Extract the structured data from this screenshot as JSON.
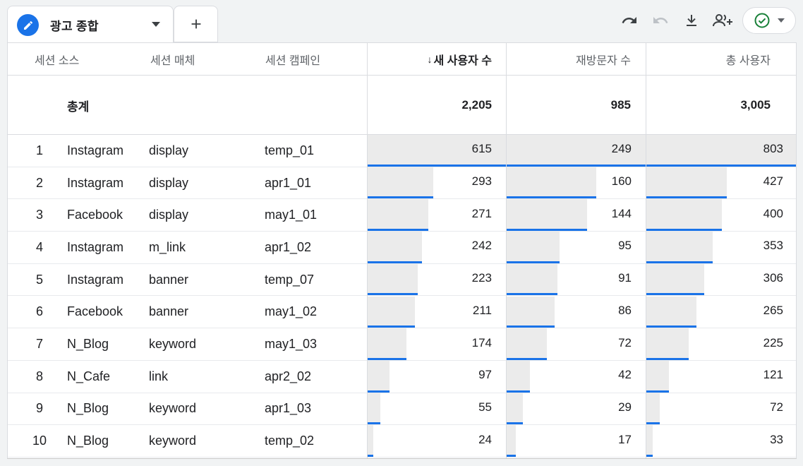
{
  "tab": {
    "label": "광고 종합"
  },
  "toolbar": {
    "icons": [
      "undo-icon",
      "redo-icon",
      "download-icon",
      "share-user-icon",
      "check-circle-icon"
    ]
  },
  "colors": {
    "accent": "#1a73e8",
    "bar_bg": "#ebebeb",
    "status_green": "#188038"
  },
  "table": {
    "headers": {
      "source": "세션 소스",
      "medium": "세션 매체",
      "campaign": "세션 캠페인",
      "new_users": "새 사용자 수",
      "returning": "재방문자 수",
      "total_users": "총 사용자"
    },
    "sort_arrow": "↓",
    "totals": {
      "label": "총계",
      "new_users": "2,205",
      "returning": "985",
      "total_users": "3,005"
    },
    "rows": [
      {
        "idx": "1",
        "source": "Instagram",
        "medium": "display",
        "campaign": "temp_01",
        "new_users": 615,
        "returning": 249,
        "total_users": 803
      },
      {
        "idx": "2",
        "source": "Instagram",
        "medium": "display",
        "campaign": "apr1_01",
        "new_users": 293,
        "returning": 160,
        "total_users": 427
      },
      {
        "idx": "3",
        "source": "Facebook",
        "medium": "display",
        "campaign": "may1_01",
        "new_users": 271,
        "returning": 144,
        "total_users": 400
      },
      {
        "idx": "4",
        "source": "Instagram",
        "medium": "m_link",
        "campaign": "apr1_02",
        "new_users": 242,
        "returning": 95,
        "total_users": 353
      },
      {
        "idx": "5",
        "source": "Instagram",
        "medium": "banner",
        "campaign": "temp_07",
        "new_users": 223,
        "returning": 91,
        "total_users": 306
      },
      {
        "idx": "6",
        "source": "Facebook",
        "medium": "banner",
        "campaign": "may1_02",
        "new_users": 211,
        "returning": 86,
        "total_users": 265
      },
      {
        "idx": "7",
        "source": "N_Blog",
        "medium": "keyword",
        "campaign": "may1_03",
        "new_users": 174,
        "returning": 72,
        "total_users": 225
      },
      {
        "idx": "8",
        "source": "N_Cafe",
        "medium": "link",
        "campaign": "apr2_02",
        "new_users": 97,
        "returning": 42,
        "total_users": 121
      },
      {
        "idx": "9",
        "source": "N_Blog",
        "medium": "keyword",
        "campaign": "apr1_03",
        "new_users": 55,
        "returning": 29,
        "total_users": 72
      },
      {
        "idx": "10",
        "source": "N_Blog",
        "medium": "keyword",
        "campaign": "temp_02",
        "new_users": 24,
        "returning": 17,
        "total_users": 33
      }
    ]
  }
}
